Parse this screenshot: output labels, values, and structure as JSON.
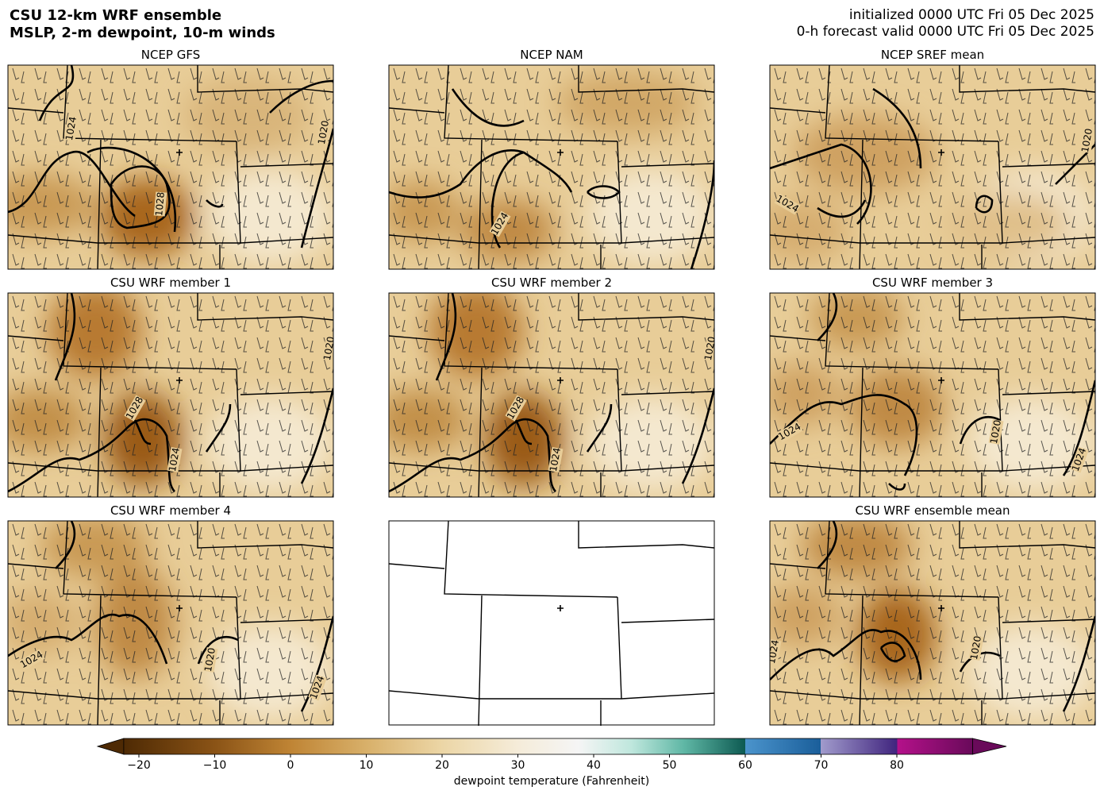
{
  "header": {
    "title": [
      "CSU 12-km WRF ensemble",
      "MSLP, 2-m dewpoint, 10-m winds"
    ],
    "init": "initialized 0000 UTC Fri 05 Dec 2025",
    "valid": "0-h forecast valid 0000 UTC Fri 05 Dec 2025"
  },
  "panels": [
    {
      "title": "NCEP GFS",
      "contour_labels": [
        1024,
        1028,
        1020
      ]
    },
    {
      "title": "NCEP NAM",
      "contour_labels": [
        1024
      ]
    },
    {
      "title": "NCEP SREF mean",
      "contour_labels": [
        1024,
        1020
      ]
    },
    {
      "title": "CSU WRF member 1",
      "contour_labels": [
        1028,
        1024,
        1020
      ]
    },
    {
      "title": "CSU WRF member 2",
      "contour_labels": [
        1028,
        1024,
        1020
      ]
    },
    {
      "title": "CSU WRF member 3",
      "contour_labels": [
        1024,
        1020,
        1024
      ]
    },
    {
      "title": "CSU WRF member 4",
      "contour_labels": [
        1024,
        1020,
        1024
      ]
    },
    {
      "title": "CSU WRF ensemble mean",
      "contour_labels": [
        1020,
        1024
      ]
    }
  ],
  "colorbar": {
    "label": "dewpoint temperature (Fahrenheit)",
    "lim": [
      -22,
      90
    ],
    "ticks": [
      {
        "value": -20,
        "label": "−20"
      },
      {
        "value": -10,
        "label": "−10"
      },
      0,
      10,
      20,
      30,
      40,
      50,
      60,
      70,
      80
    ]
  }
}
